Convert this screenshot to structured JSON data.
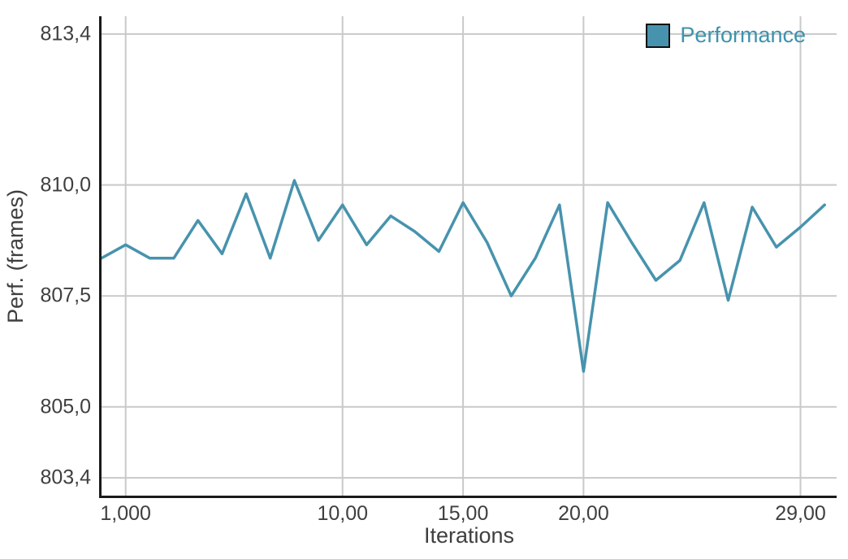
{
  "chart": {
    "ylabel": "Perf. (frames)",
    "xlabel": "Iterations",
    "legend": {
      "label": "Performance"
    },
    "colors": {
      "line": "#4793ad",
      "legend_text": "#3d93ad",
      "grid": "#c9c9c9",
      "axis": "#1a1a1a",
      "text": "#3f3f3f",
      "background": "#ffffff"
    }
  },
  "chart_data": {
    "type": "line",
    "title": "",
    "xlabel": "Iterations",
    "ylabel": "Perf. (frames)",
    "grid": true,
    "legend_position": "top-right",
    "xlim": [
      0,
      30.5
    ],
    "ylim": [
      803.0,
      813.8
    ],
    "x_ticks": [
      {
        "x": 1,
        "label": "1,000"
      },
      {
        "x": 10,
        "label": "10,00"
      },
      {
        "x": 15,
        "label": "15,00"
      },
      {
        "x": 20,
        "label": "20,00"
      },
      {
        "x": 29,
        "label": "29,00"
      }
    ],
    "y_ticks": [
      {
        "y": 813.4,
        "label": "813,4"
      },
      {
        "y": 810.0,
        "label": "810,0"
      },
      {
        "y": 807.5,
        "label": "807,5"
      },
      {
        "y": 805.0,
        "label": "805,0"
      },
      {
        "y": 803.4,
        "label": "803,4"
      }
    ],
    "series": [
      {
        "name": "Performance",
        "values": [
          808.35,
          808.65,
          808.35,
          808.35,
          809.2,
          808.45,
          809.8,
          808.35,
          810.1,
          808.75,
          809.55,
          808.65,
          809.3,
          808.95,
          808.5,
          809.6,
          808.7,
          807.5,
          808.35,
          809.55,
          805.8,
          809.6,
          808.7,
          807.85,
          808.3,
          809.6,
          807.4,
          809.5,
          808.6,
          809.05,
          809.55
        ]
      }
    ]
  }
}
